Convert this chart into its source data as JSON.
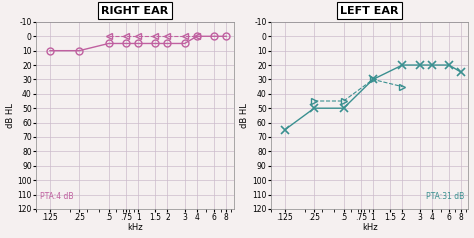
{
  "right_ear": {
    "title": "RIGHT EAR",
    "pta_label": "PTA:4 dB",
    "air_freqs": [
      0.125,
      0.25,
      0.5,
      0.75,
      1.0,
      1.5,
      2.0,
      3.0,
      4.0,
      6.0,
      8.0
    ],
    "air_values": [
      10,
      10,
      5,
      5,
      5,
      5,
      5,
      5,
      0,
      0,
      0
    ],
    "bone_freqs": [
      0.5,
      0.75,
      1.0,
      1.5,
      2.0,
      3.0,
      4.0
    ],
    "bone_values": [
      0,
      0,
      0,
      0,
      0,
      0,
      0
    ],
    "air_color": "#c060a0",
    "bone_color": "#c060a0",
    "ylabel": "dB HL",
    "xlabel": "kHz",
    "ylim": [
      -10,
      120
    ],
    "yticks": [
      -10,
      0,
      10,
      20,
      30,
      40,
      50,
      60,
      70,
      80,
      90,
      100,
      110,
      120
    ],
    "xtick_labels": [
      ".125",
      ".25",
      ".5",
      ".75",
      "1",
      "1.5",
      "2",
      "3",
      "4",
      "6",
      "8"
    ],
    "xtick_pos": [
      0.125,
      0.25,
      0.5,
      0.75,
      1.0,
      1.5,
      2.0,
      3.0,
      4.0,
      6.0,
      8.0
    ]
  },
  "left_ear": {
    "title": "LEFT EAR",
    "pta_label": "PTA:31 dB",
    "air_freqs": [
      0.125,
      0.25,
      0.5,
      1.0,
      2.0,
      3.0,
      4.0,
      6.0,
      8.0
    ],
    "air_values": [
      65,
      50,
      50,
      30,
      20,
      20,
      20,
      20,
      25
    ],
    "bone_freqs": [
      0.25,
      0.5,
      1.0,
      2.0
    ],
    "bone_values": [
      45,
      45,
      30,
      35
    ],
    "air_color": "#3a9090",
    "bone_color": "#3a9090",
    "ylabel": "dB HL",
    "xlabel": "kHz",
    "ylim": [
      -10,
      120
    ],
    "yticks": [
      -10,
      0,
      10,
      20,
      30,
      40,
      50,
      60,
      70,
      80,
      90,
      100,
      110,
      120
    ],
    "xtick_labels": [
      ".125",
      ".25",
      ".5",
      ".75",
      "1",
      "1.5",
      "2",
      "3",
      "4",
      "6",
      "8"
    ],
    "xtick_pos": [
      0.125,
      0.25,
      0.5,
      0.75,
      1.0,
      1.5,
      2.0,
      3.0,
      4.0,
      6.0,
      8.0
    ]
  },
  "bg_color": "#f5f0f0",
  "grid_color": "#ccbbcc",
  "title_box_color": "#ffffff"
}
